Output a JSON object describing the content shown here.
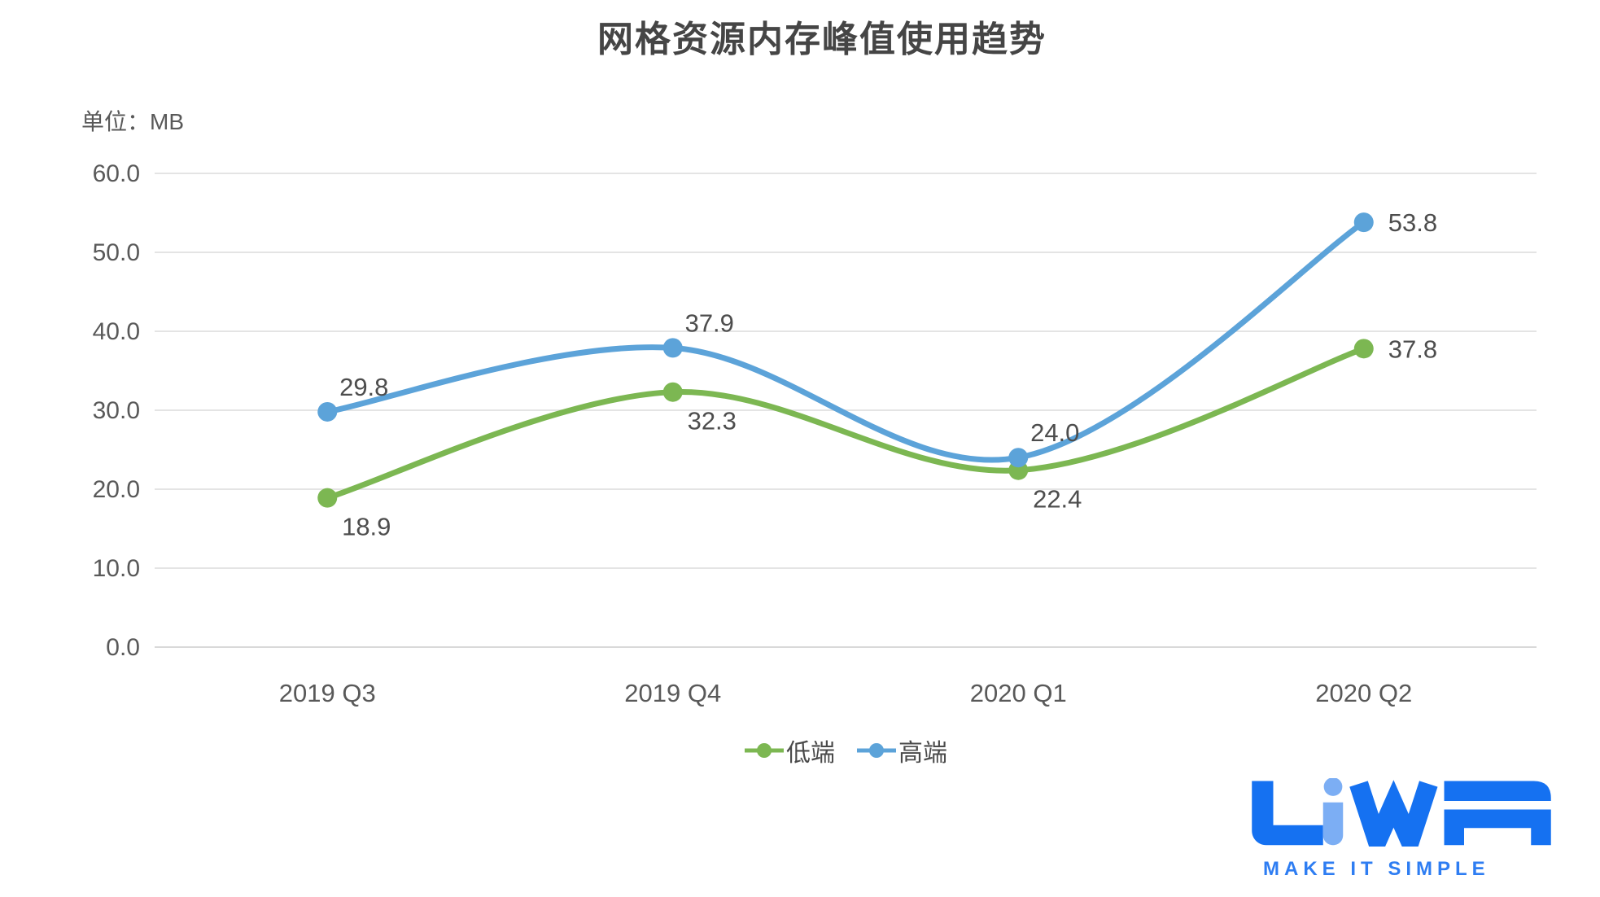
{
  "title": "网格资源内存峰值使用趋势",
  "unit_label": "单位：MB",
  "colors": {
    "series_green": "#7CB752",
    "series_blue": "#5CA3D9",
    "grid": "#e4e4e4",
    "axis_line": "#d9d9d9",
    "axis_text": "#595959",
    "title_text": "#454545",
    "data_label_text": "#4d4d4d",
    "logo_blue": "#1571f1",
    "logo_light_blue": "#7caef4",
    "tagline_blue": "#2e7df2"
  },
  "chart_data": {
    "type": "line",
    "title": "网格资源内存峰值使用趋势",
    "ylabel": "单位：MB",
    "categories": [
      "2019 Q3",
      "2019 Q4",
      "2020 Q1",
      "2020 Q2"
    ],
    "series": [
      {
        "name": "低端",
        "color": "#7CB752",
        "values": [
          18.9,
          32.3,
          22.4,
          37.8
        ]
      },
      {
        "name": "高端",
        "color": "#5CA3D9",
        "values": [
          29.8,
          37.9,
          24.0,
          53.8
        ]
      }
    ],
    "ylim": [
      0,
      60
    ],
    "ytick_step": 10,
    "ytick_labels": [
      "0.0",
      "10.0",
      "20.0",
      "30.0",
      "40.0",
      "50.0",
      "60.0"
    ],
    "grid": true,
    "smooth": true,
    "legend_position": "bottom"
  },
  "logo": {
    "text": "LiWA",
    "tagline": "MAKE IT SIMPLE"
  }
}
